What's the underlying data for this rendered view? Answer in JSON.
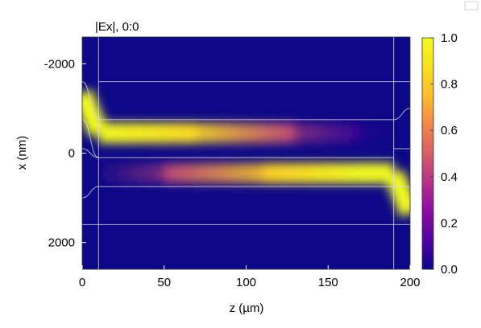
{
  "chart_data": {
    "type": "heatmap",
    "title": "|Ex|, 0:0",
    "xlabel": "z (µm)",
    "ylabel": "x (nm)",
    "xlim": [
      0,
      200
    ],
    "ylim": [
      2600,
      -2600
    ],
    "x_ticks": [
      0,
      50,
      100,
      150,
      200
    ],
    "y_ticks": [
      -2000,
      0,
      2000
    ],
    "grid": false,
    "colorbar": {
      "colormap": "plasma",
      "min": 0.0,
      "max": 1.0,
      "ticks": [
        0.0,
        0.2,
        0.4,
        0.6,
        0.8,
        1.0
      ],
      "tick_labels": [
        "0.0",
        "0.2",
        "0.4",
        "0.6",
        "0.8",
        "1.0"
      ]
    },
    "field_bands": [
      {
        "name": "upper-band",
        "path": [
          {
            "z": 0,
            "x": -1350,
            "amplitude": 1.0
          },
          {
            "z": 10,
            "x": -450,
            "amplitude": 1.0
          },
          {
            "z": 70,
            "x": -450,
            "amplitude": 0.85
          },
          {
            "z": 130,
            "x": -450,
            "amplitude": 0.45
          },
          {
            "z": 170,
            "x": -450,
            "amplitude": 0.12
          },
          {
            "z": 190,
            "x": -450,
            "amplitude": 0.03
          }
        ]
      },
      {
        "name": "lower-band",
        "path": [
          {
            "z": 10,
            "x": 450,
            "amplitude": 0.03
          },
          {
            "z": 50,
            "x": 450,
            "amplitude": 0.45
          },
          {
            "z": 110,
            "x": 450,
            "amplitude": 0.8
          },
          {
            "z": 170,
            "x": 450,
            "amplitude": 1.0
          },
          {
            "z": 190,
            "x": 450,
            "amplitude": 1.0
          },
          {
            "z": 200,
            "x": 1350,
            "amplitude": 1.0
          }
        ]
      }
    ],
    "structure_outlines": {
      "section_boundaries_z": [
        10,
        190
      ],
      "horizontal_lines_x": [
        -1600,
        -750,
        100,
        750,
        1600
      ],
      "taper_left": {
        "z": [
          0,
          10
        ],
        "x_from": [
          -1600,
          -750,
          -100,
          1000,
          1600
        ],
        "x_to": [
          -750,
          100,
          100,
          750,
          1600
        ]
      },
      "taper_right": {
        "z": [
          190,
          200
        ],
        "x_from": [
          -1600,
          -750,
          -100,
          750,
          1600
        ],
        "x_to": [
          -1600,
          -1000,
          -100,
          750,
          1600
        ]
      }
    }
  }
}
